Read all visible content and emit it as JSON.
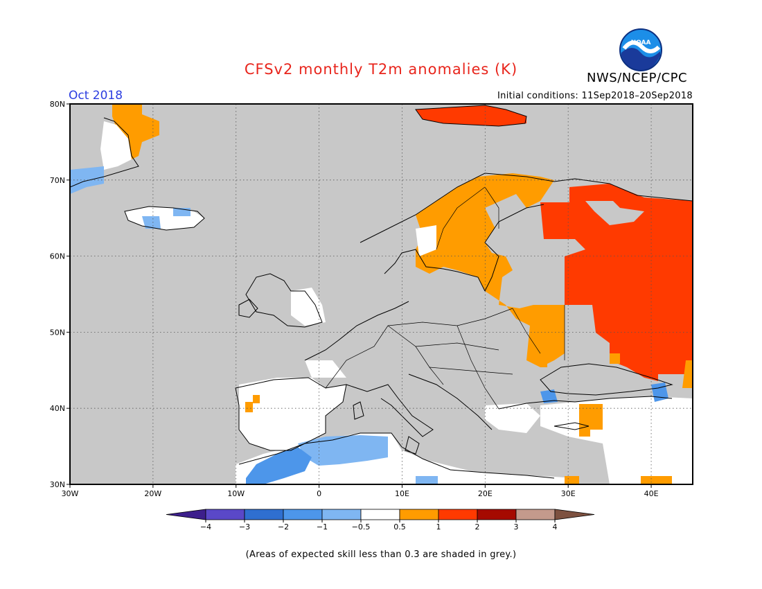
{
  "title": "CFSv2 monthly T2m anomalies (K)",
  "organization": "NWS/NCEP/CPC",
  "logo_text": "NOAA",
  "forecast_month": "Oct 2018",
  "initial_conditions": "Initial conditions: 11Sep2018–20Sep2018",
  "footnote": "(Areas of expected skill less than 0.3 are shaded in grey.)",
  "map": {
    "lon_range": [
      -30,
      45
    ],
    "lat_range": [
      30,
      80
    ],
    "lon_labels": [
      "30W",
      "20W",
      "10W",
      "0",
      "10E",
      "20E",
      "30E",
      "40E"
    ],
    "lat_labels": [
      "30N",
      "40N",
      "50N",
      "60N",
      "70N",
      "80N"
    ],
    "low_skill_color": "#c8c8c8"
  },
  "colorbar": {
    "labels": [
      "−4",
      "−3",
      "−2",
      "−1",
      "−0.5",
      "0.5",
      "1",
      "2",
      "3",
      "4"
    ],
    "colors": [
      "#3d1f8c",
      "#5a48c8",
      "#2f6fd0",
      "#4d96ea",
      "#7fb6f2",
      "#ffffff",
      "#ff9c00",
      "#ff3a00",
      "#a50a00",
      "#c49a8c",
      "#7d5140"
    ]
  },
  "regions": [
    {
      "name": "Russia / Eastern Europe",
      "anomaly": "1 to 2 K",
      "color": "#ff3a00"
    },
    {
      "name": "Svalbard",
      "anomaly": "1 to 2 K",
      "color": "#ff3a00"
    },
    {
      "name": "Scandinavia / Finland / Baltics",
      "anomaly": "0.5 to 1 K",
      "color": "#ff9c00"
    },
    {
      "name": "Iberia / Mediterranean coasts",
      "anomaly": "-0.5 to 0.5 K",
      "color": "#ffffff"
    },
    {
      "name": "Northern Algeria",
      "anomaly": "-1 to -0.5 K",
      "color": "#7fb6f2"
    },
    {
      "name": "Morocco",
      "anomaly": "-2 to -1 K",
      "color": "#4d96ea"
    }
  ]
}
